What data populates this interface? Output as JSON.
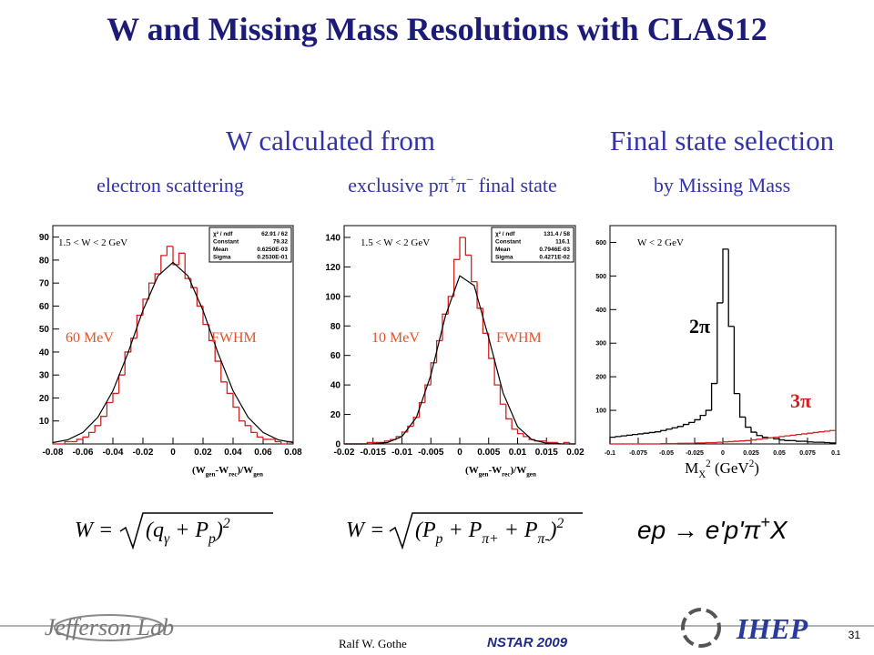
{
  "title": "W and Missing Mass Resolutions with CLAS12",
  "headings": [
    "W calculated from",
    "Final state selection"
  ],
  "subheadings": [
    "electron scattering",
    [
      "exclusive pπ",
      "+",
      "π",
      "−",
      " final state"
    ],
    "by Missing Mass"
  ],
  "chart_data": [
    {
      "type": "histogram",
      "xlim": [
        -0.08,
        0.08
      ],
      "ylim": [
        0,
        95
      ],
      "xticks": [
        -0.08,
        -0.06,
        -0.04,
        -0.02,
        0,
        0.02,
        0.04,
        0.06,
        0.08
      ],
      "yticks": [
        10,
        20,
        30,
        40,
        50,
        60,
        70,
        80,
        90
      ],
      "xlabel": [
        "(W",
        "gen",
        "-W",
        "rec",
        ")/W",
        "gen"
      ],
      "annotations": [
        "1.5 < W < 2 GeV",
        "60 MeV",
        "FWHM"
      ],
      "stats": [
        [
          "χ² / ndf",
          "62.91 / 62"
        ],
        [
          "Constant",
          "79.32"
        ],
        [
          "Mean",
          "0.6250E-03"
        ],
        [
          "Sigma",
          "0.2530E-01"
        ]
      ],
      "bins": [
        -0.08,
        -0.076,
        -0.072,
        -0.068,
        -0.064,
        -0.06,
        -0.056,
        -0.052,
        -0.048,
        -0.044,
        -0.04,
        -0.036,
        -0.032,
        -0.028,
        -0.024,
        -0.02,
        -0.016,
        -0.012,
        -0.008,
        -0.004,
        0,
        0.004,
        0.008,
        0.012,
        0.016,
        0.02,
        0.024,
        0.028,
        0.032,
        0.036,
        0.04,
        0.044,
        0.048,
        0.052,
        0.056,
        0.06,
        0.064,
        0.068,
        0.072,
        0.076,
        0.08
      ],
      "series": [
        {
          "color": "#d42020",
          "values": [
            0,
            0,
            1,
            1,
            2,
            3,
            5,
            8,
            12,
            18,
            22,
            30,
            40,
            46,
            56,
            63,
            70,
            74,
            82,
            86,
            78,
            83,
            72,
            68,
            60,
            52,
            45,
            36,
            27,
            22,
            16,
            10,
            8,
            5,
            3,
            2,
            2,
            1,
            0,
            1
          ]
        }
      ],
      "fit": {
        "color": "#000000",
        "x": [
          -0.08,
          -0.07,
          -0.06,
          -0.05,
          -0.04,
          -0.03,
          -0.02,
          -0.01,
          0,
          0.01,
          0.02,
          0.03,
          0.04,
          0.05,
          0.06,
          0.07,
          0.08
        ],
        "values": [
          0.6,
          1.8,
          5.0,
          11.6,
          23.1,
          39.5,
          58.1,
          73.1,
          79,
          73.1,
          58.1,
          39.5,
          23.1,
          11.6,
          5.0,
          1.8,
          0.6
        ]
      }
    },
    {
      "type": "histogram",
      "xlim": [
        -0.02,
        0.02
      ],
      "ylim": [
        0,
        148
      ],
      "xticks": [
        -0.02,
        -0.015,
        -0.01,
        -0.005,
        0,
        0.005,
        0.01,
        0.015,
        0.02
      ],
      "yticks": [
        0,
        20,
        40,
        60,
        80,
        100,
        120,
        140
      ],
      "xlabel": [
        "(W",
        "gen",
        "-W",
        "rec",
        ")/W",
        "gen"
      ],
      "annotations": [
        "1.5 < W < 2 GeV",
        "10 MeV",
        "FWHM"
      ],
      "stats": [
        [
          "χ² / ndf",
          "131.4 / 58"
        ],
        [
          "Constant",
          "116.1"
        ],
        [
          "Mean",
          "0.7946E-03"
        ],
        [
          "Sigma",
          "0.4271E-02"
        ]
      ],
      "bins": [
        -0.02,
        -0.019,
        -0.018,
        -0.017,
        -0.016,
        -0.015,
        -0.014,
        -0.013,
        -0.012,
        -0.011,
        -0.01,
        -0.009,
        -0.008,
        -0.007,
        -0.006,
        -0.005,
        -0.004,
        -0.003,
        -0.002,
        -0.001,
        0,
        0.001,
        0.002,
        0.003,
        0.004,
        0.005,
        0.006,
        0.007,
        0.008,
        0.009,
        0.01,
        0.011,
        0.012,
        0.013,
        0.014,
        0.015,
        0.016,
        0.017,
        0.018,
        0.019,
        0.02
      ],
      "series": [
        {
          "color": "#d42020",
          "values": [
            0,
            0,
            0,
            0,
            1,
            1,
            1,
            2,
            3,
            5,
            8,
            12,
            18,
            28,
            40,
            55,
            70,
            88,
            100,
            125,
            140,
            128,
            110,
            92,
            75,
            58,
            40,
            27,
            17,
            10,
            7,
            5,
            3,
            2,
            2,
            1,
            1,
            0,
            1,
            0
          ]
        }
      ],
      "fit": {
        "color": "#000000",
        "x": [
          -0.02,
          -0.0175,
          -0.015,
          -0.0125,
          -0.01,
          -0.0075,
          -0.005,
          -0.0025,
          0,
          0.0025,
          0.005,
          0.0075,
          0.01,
          0.0125,
          0.015,
          0.0175,
          0.02
        ],
        "values": [
          0,
          0,
          0.1,
          1.0,
          5.0,
          18.0,
          46.7,
          86.5,
          114,
          107.3,
          72,
          34.5,
          11.7,
          2.9,
          0.5,
          0.1,
          0
        ]
      }
    },
    {
      "type": "histogram",
      "xlim": [
        -0.1,
        0.1
      ],
      "ylim": [
        0,
        650
      ],
      "xticks": [
        -0.1,
        -0.075,
        -0.05,
        -0.025,
        0,
        0.025,
        0.05,
        0.075,
        0.1
      ],
      "yticks": [
        100,
        200,
        300,
        400,
        500,
        600
      ],
      "xlabel": [
        "M",
        "X",
        "2",
        "  (GeV",
        "2",
        ")"
      ],
      "annotations": [
        "W < 2 GeV"
      ],
      "bins": [
        -0.1,
        -0.095,
        -0.09,
        -0.085,
        -0.08,
        -0.075,
        -0.07,
        -0.065,
        -0.06,
        -0.055,
        -0.05,
        -0.045,
        -0.04,
        -0.035,
        -0.03,
        -0.025,
        -0.02,
        -0.015,
        -0.01,
        -0.005,
        0,
        0.005,
        0.01,
        0.015,
        0.02,
        0.025,
        0.03,
        0.035,
        0.04,
        0.045,
        0.05,
        0.055,
        0.06,
        0.065,
        0.07,
        0.075,
        0.08,
        0.085,
        0.09,
        0.095,
        0.1
      ],
      "series": [
        {
          "name": "2π",
          "color": "#000000",
          "values": [
            20,
            22,
            24,
            26,
            28,
            30,
            32,
            34,
            36,
            40,
            44,
            48,
            52,
            58,
            64,
            72,
            85,
            100,
            180,
            420,
            580,
            350,
            150,
            80,
            50,
            35,
            25,
            20,
            18,
            15,
            12,
            10,
            10,
            8,
            8,
            6,
            5,
            5,
            4,
            3
          ]
        },
        {
          "name": "3π",
          "color": "#d42020",
          "values": [
            0,
            0,
            0,
            0,
            0,
            0,
            0,
            0,
            0,
            1,
            1,
            1,
            2,
            2,
            2,
            3,
            3,
            4,
            4,
            5,
            6,
            7,
            8,
            9,
            10,
            12,
            14,
            16,
            18,
            20,
            22,
            24,
            26,
            28,
            30,
            32,
            34,
            36,
            38,
            40
          ]
        }
      ]
    }
  ],
  "formulas": [
    {
      "lhs": "W =",
      "body": [
        "(q",
        "γ",
        " + P",
        "p",
        ")",
        "2"
      ]
    },
    {
      "lhs": "W =",
      "body": [
        "(P",
        "p",
        " + P",
        "π+",
        " + P",
        "π-",
        ")",
        "2"
      ]
    },
    {
      "body": [
        "ep → e'p'π",
        "+",
        "X"
      ]
    }
  ],
  "footer": {
    "logo_left": "Jefferson Lab",
    "author": "Ralf W. Gothe",
    "conference": "NSTAR 2009",
    "logo_right": "IHEP",
    "page": "31"
  }
}
